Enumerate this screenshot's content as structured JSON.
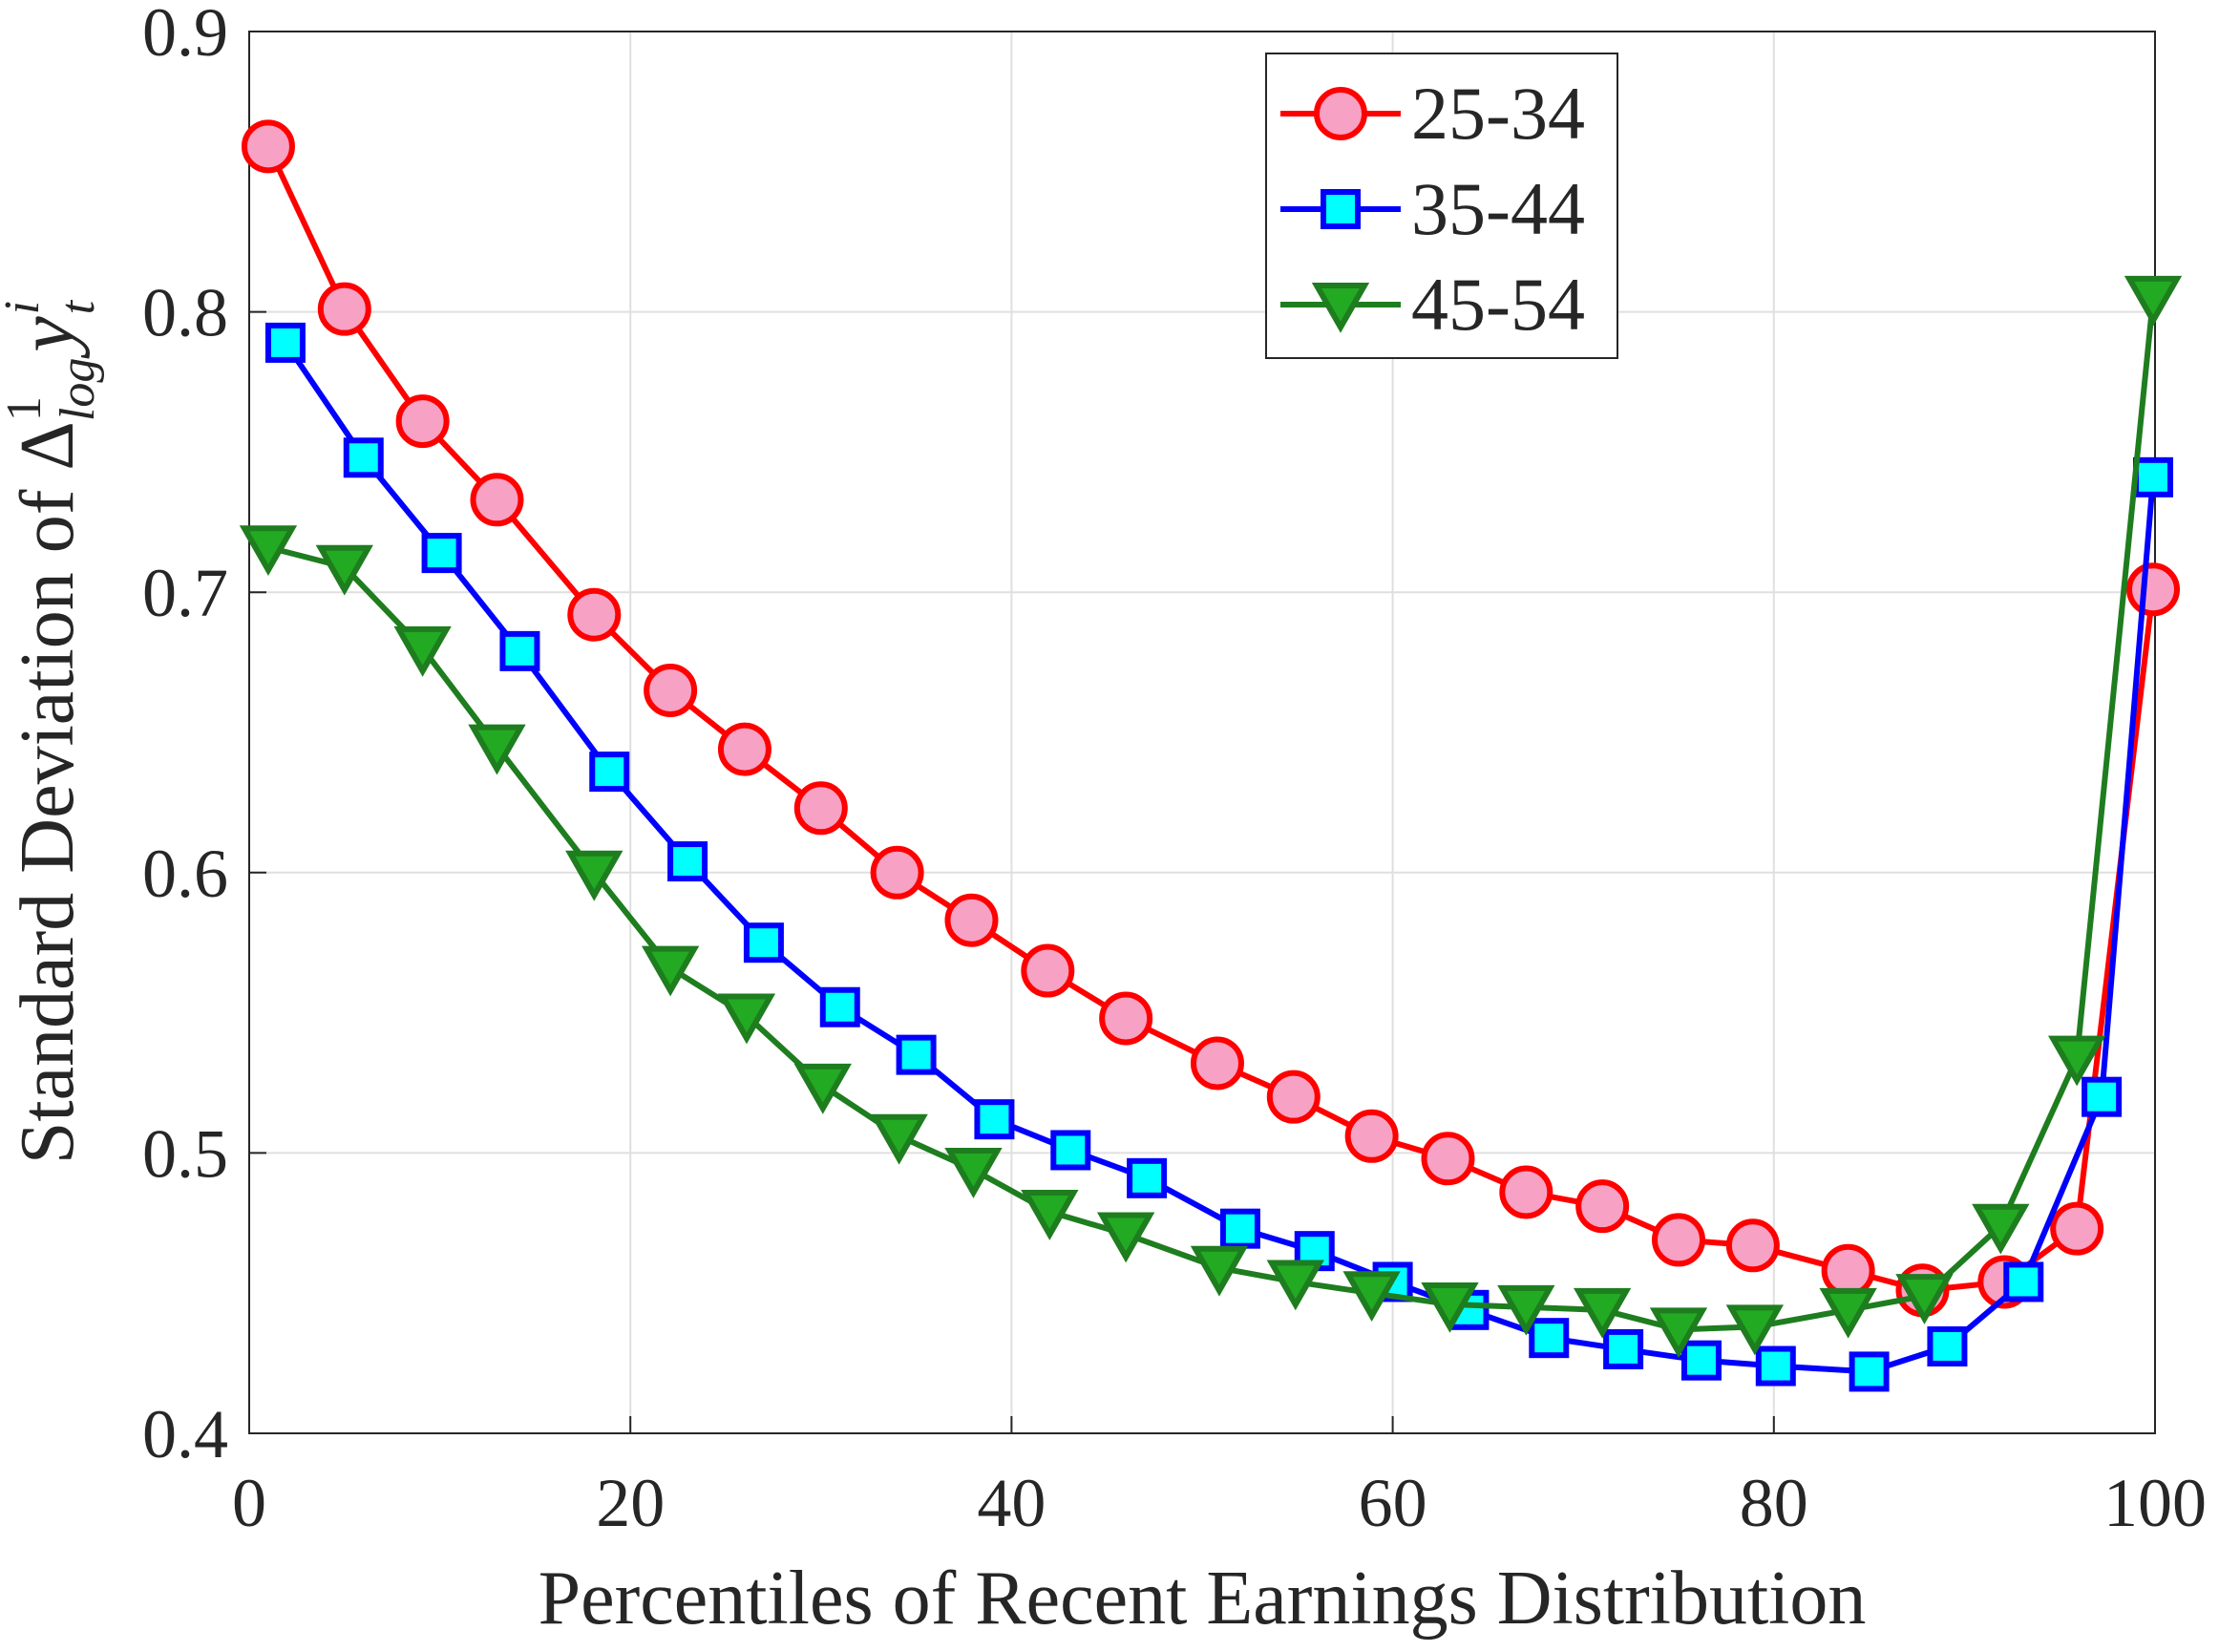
{
  "chart_data": {
    "type": "line",
    "xlabel": "Percentiles of Recent Earnings Distribution",
    "ylabel": [
      "Standard Deviation of Δ",
      "1",
      "log",
      "y",
      "i",
      "t"
    ],
    "xlim": [
      0,
      100
    ],
    "xticks": [
      0,
      20,
      40,
      60,
      80,
      100
    ],
    "ylim": [
      0.4,
      0.9
    ],
    "yticks": [
      0.4,
      0.5,
      0.6,
      0.7,
      0.8,
      0.9
    ],
    "grid": true,
    "legend": "upper-right",
    "series": [
      {
        "name": "25-34",
        "color": "#ff0000",
        "marker": "circle",
        "marker_fill": "#f7a1c4",
        "x": [
          1.0,
          5.0,
          9.1,
          13.0,
          18.1,
          22.1,
          26.0,
          30.0,
          34.0,
          37.9,
          41.9,
          46.0,
          50.8,
          54.8,
          58.9,
          62.9,
          67.0,
          71.0,
          75.0,
          78.9,
          83.9,
          87.8,
          92.1,
          95.9,
          99.9
        ],
        "values": [
          0.859,
          0.801,
          0.761,
          0.733,
          0.692,
          0.665,
          0.644,
          0.623,
          0.6,
          0.583,
          0.565,
          0.548,
          0.532,
          0.52,
          0.506,
          0.498,
          0.486,
          0.481,
          0.469,
          0.467,
          0.458,
          0.451,
          0.454,
          0.473,
          0.701
        ]
      },
      {
        "name": "35-44",
        "color": "#0000ff",
        "marker": "square",
        "marker_fill": "#00ffff",
        "x": [
          1.9,
          6.0,
          10.1,
          14.2,
          18.9,
          23.0,
          27.0,
          31.0,
          35.0,
          39.1,
          43.1,
          47.1,
          52.0,
          55.9,
          60.0,
          64.0,
          68.2,
          72.1,
          76.2,
          80.1,
          85.0,
          89.1,
          93.1,
          97.2,
          99.9
        ],
        "values": [
          0.789,
          0.748,
          0.714,
          0.679,
          0.636,
          0.604,
          0.575,
          0.552,
          0.535,
          0.512,
          0.501,
          0.491,
          0.473,
          0.465,
          0.454,
          0.444,
          0.434,
          0.43,
          0.426,
          0.424,
          0.422,
          0.431,
          0.454,
          0.52,
          0.741
        ]
      },
      {
        "name": "45-54",
        "color": "#1e7d1e",
        "marker": "triangle-down",
        "marker_fill": "#22aa22",
        "x": [
          1.0,
          5.0,
          9.1,
          13.0,
          18.1,
          22.1,
          26.1,
          30.1,
          34.1,
          38.0,
          42.0,
          46.0,
          50.9,
          54.9,
          58.9,
          63.0,
          67.0,
          71.0,
          75.0,
          79.0,
          83.9,
          87.9,
          91.9,
          95.9,
          99.9
        ],
        "values": [
          0.716,
          0.709,
          0.68,
          0.645,
          0.6,
          0.566,
          0.549,
          0.524,
          0.506,
          0.494,
          0.479,
          0.471,
          0.459,
          0.454,
          0.45,
          0.446,
          0.445,
          0.444,
          0.437,
          0.438,
          0.444,
          0.449,
          0.474,
          0.534,
          0.805
        ]
      }
    ]
  }
}
